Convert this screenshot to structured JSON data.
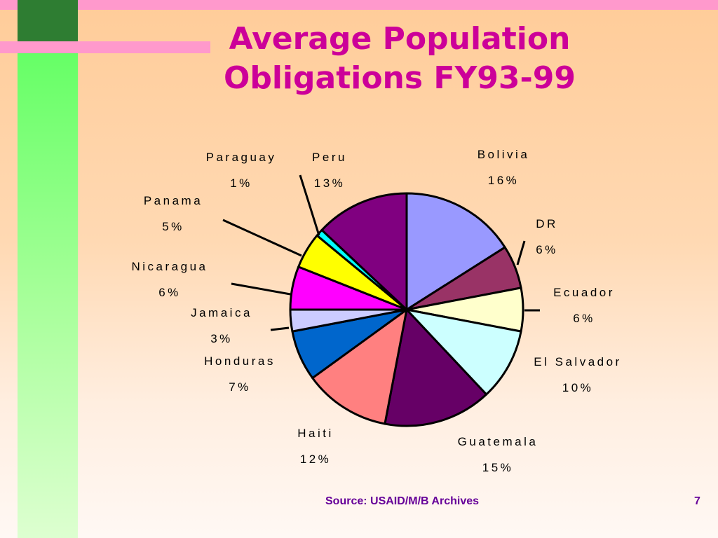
{
  "slide": {
    "title_line1": "Average Population",
    "title_line2": "Obligations FY93-99",
    "source": "Source:  USAID/M/B Archives",
    "page_number": "7"
  },
  "chart_data": {
    "type": "pie",
    "title": "Average Population Obligations FY93-99",
    "slices": [
      {
        "label": "Bolivia",
        "value": 16,
        "value_label": "16%",
        "color": "#9999ff"
      },
      {
        "label": "DR",
        "value": 6,
        "value_label": "6%",
        "color": "#993366"
      },
      {
        "label": "Ecuador",
        "value": 6,
        "value_label": "6%",
        "color": "#ffffcc"
      },
      {
        "label": "El Salvador",
        "value": 10,
        "value_label": "10%",
        "color": "#ccffff"
      },
      {
        "label": "Guatemala",
        "value": 15,
        "value_label": "15%",
        "color": "#660066"
      },
      {
        "label": "Haiti",
        "value": 12,
        "value_label": "12%",
        "color": "#ff8080"
      },
      {
        "label": "Honduras",
        "value": 7,
        "value_label": "7%",
        "color": "#0066cc"
      },
      {
        "label": "Jamaica",
        "value": 3,
        "value_label": "3%",
        "color": "#ccccff"
      },
      {
        "label": "Nicaragua",
        "value": 6,
        "value_label": "6%",
        "color": "#ff00ff"
      },
      {
        "label": "Panama",
        "value": 5,
        "value_label": "5%",
        "color": "#ffff00"
      },
      {
        "label": "Paraguay",
        "value": 1,
        "value_label": "1%",
        "color": "#00ffff"
      },
      {
        "label": "Peru",
        "value": 13,
        "value_label": "13%",
        "color": "#800080"
      }
    ],
    "start_angle_deg": 0,
    "direction": "clockwise",
    "legend": "none"
  }
}
